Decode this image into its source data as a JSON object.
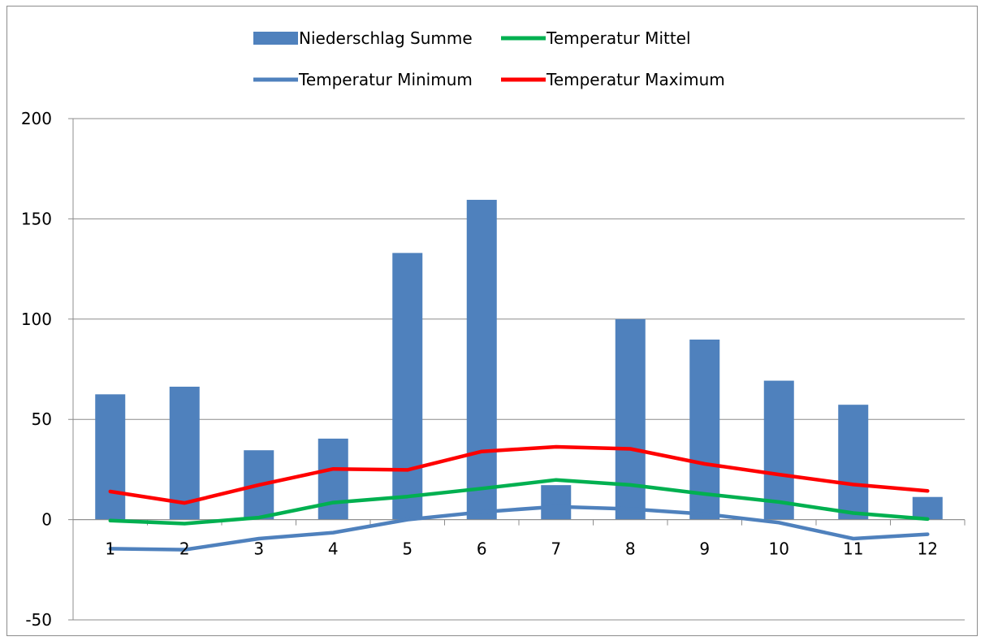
{
  "chart_data": {
    "type": "bar",
    "categories": [
      "1",
      "2",
      "3",
      "4",
      "5",
      "6",
      "7",
      "8",
      "9",
      "10",
      "11",
      "12"
    ],
    "ylim": [
      -50,
      200
    ],
    "yticks": [
      -50,
      0,
      50,
      100,
      150,
      200
    ],
    "ytick_labels": [
      "-50",
      "0",
      "50",
      "100",
      "150",
      "200"
    ],
    "grid": true,
    "legend_position": "top",
    "series": [
      {
        "name": "Niederschlag Summe",
        "type": "bar",
        "color": "#4f81bd",
        "values": [
          62.5,
          66.3,
          34.6,
          40.4,
          133.0,
          159.5,
          17.2,
          100.0,
          89.8,
          69.3,
          57.3,
          11.3
        ]
      },
      {
        "name": "Temperatur Mittel",
        "type": "line",
        "color": "#00b050",
        "values": [
          -0.5,
          -2.0,
          1.0,
          8.5,
          11.5,
          15.5,
          19.8,
          17.3,
          12.8,
          8.8,
          3.3,
          0.3
        ]
      },
      {
        "name": "Temperatur Minimum",
        "type": "line",
        "color": "#4f81bd",
        "values": [
          -14.5,
          -15.0,
          -9.5,
          -6.5,
          0.0,
          3.8,
          6.5,
          5.3,
          2.8,
          -1.5,
          -9.5,
          -7.3
        ]
      },
      {
        "name": "Temperatur Maximum",
        "type": "line",
        "color": "#ff0000",
        "values": [
          14.0,
          8.3,
          17.3,
          25.3,
          24.8,
          34.0,
          36.3,
          35.3,
          27.8,
          22.5,
          17.5,
          14.3
        ]
      }
    ]
  }
}
